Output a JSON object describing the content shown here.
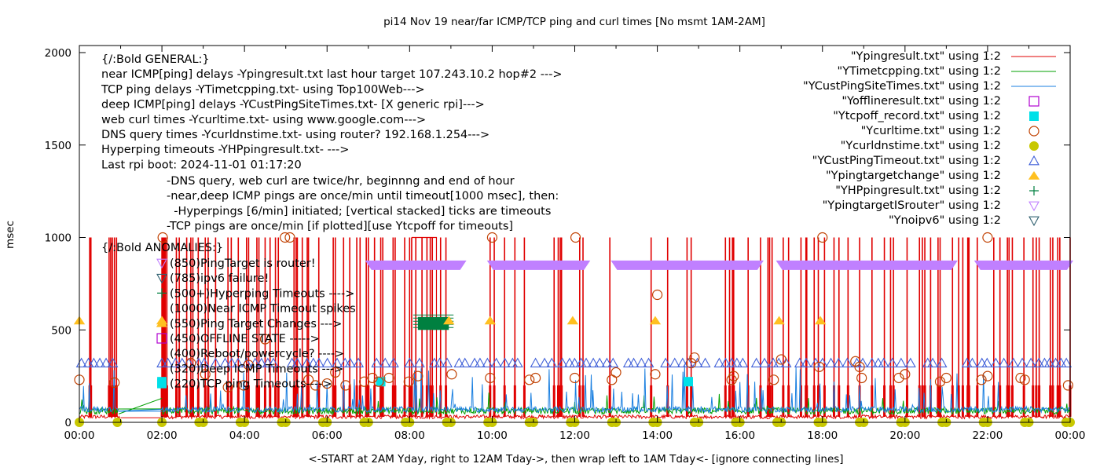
{
  "chart_data": {
    "type": "line",
    "title": "pi14 Nov 19  near/far ICMP/TCP ping and curl times [No msmt 1AM-2AM]",
    "xlabel": "<-START at 2AM Yday, right to 12AM Tday->, then wrap left to 1AM Tday<- [ignore connecting lines]",
    "ylabel": "msec",
    "xlim_hours": [
      0,
      24
    ],
    "ylim": [
      0,
      2000
    ],
    "x_ticks": [
      "00:00",
      "02:00",
      "04:00",
      "06:00",
      "08:00",
      "10:00",
      "12:00",
      "14:00",
      "16:00",
      "18:00",
      "20:00",
      "22:00",
      "00:00"
    ],
    "y_ticks": [
      0,
      500,
      1000,
      1500,
      2000
    ],
    "grid": false,
    "legend_position": "top-right",
    "legend": [
      {
        "label": "\"Ypingresult.txt\" using 1:2",
        "style": "line",
        "color": "#e00000"
      },
      {
        "label": "\"YTimetcpping.txt\" using 1:2",
        "style": "line",
        "color": "#00a000"
      },
      {
        "label": "\"YCustPingSiteTimes.txt\" using 1:2",
        "style": "line",
        "color": "#1a7fe0"
      },
      {
        "label": "\"Yofflineresult.txt\" using 1:2",
        "style": "open-square",
        "color": "#b000d0"
      },
      {
        "label": "\"Ytcpoff_record.txt\" using 1:2",
        "style": "filled-square",
        "color": "#00e0e8"
      },
      {
        "label": "\"Ycurltime.txt\" using 1:2",
        "style": "open-circle",
        "color": "#c04000"
      },
      {
        "label": "\"Ycurldnstime.txt\" using 1:2",
        "style": "filled-circle",
        "color": "#c8c800"
      },
      {
        "label": "\"YCustPingTimeout.txt\" using 1:2",
        "style": "open-triangle",
        "color": "#4060d8"
      },
      {
        "label": "\"Ypingtargetchange\" using 1:2",
        "style": "filled-triangle",
        "color": "#ffc020"
      },
      {
        "label": "\"YHPpingresult.txt\" using 1:2",
        "style": "plus",
        "color": "#008040"
      },
      {
        "label": "\"YpingtargetISrouter\" using 1:2",
        "style": "open-down-triangle",
        "color": "#c080ff"
      },
      {
        "label": "\"Ynoipv6\" using 1:2",
        "style": "open-down-triangle",
        "color": "#306070"
      }
    ],
    "annotations_general": [
      "{/:Bold GENERAL:}",
      "near ICMP[ping] delays -Ypingresult.txt last hour target 107.243.10.2 hop#2 --->",
      "TCP ping delays -YTimetcpping.txt- using Top100Web--->",
      "deep ICMP[ping] delays -YCustPingSiteTimes.txt- [X generic rpi]--->",
      "web curl times -Ycurltime.txt- using www.google.com--->",
      "DNS query times -Ycurldnstime.txt- using router? 192.168.1.254--->",
      "Hyperping timeouts -YHPpingresult.txt- --->",
      "Last rpi boot: 2024-11-01 01:17:20"
    ],
    "annotations_notes": [
      "-DNS query, web curl are twice/hr, beginnng and end of hour",
      "-near,deep ICMP pings are once/min until timeout[1000 msec], then:",
      "  -Hyperpings [6/min] initiated; [vertical stacked] ticks are timeouts",
      "-TCP pings are once/min [if plotted][use Ytcpoff for timeouts]"
    ],
    "annotations_anomalies_title": "{/:Bold ANOMALIES:}",
    "annotations_anomalies": [
      {
        "text": "(850)PingTarget is router!",
        "symbol": "open-down-triangle",
        "color": "#c080ff"
      },
      {
        "text": "(785)ipv6 failure!",
        "symbol": "open-down-triangle",
        "color": "#306070"
      },
      {
        "text": "(500+)Hyperping Timeouts ---->",
        "symbol": "plus",
        "color": "#008040"
      },
      {
        "text": "(1000)Near ICMP Timeout spikes",
        "symbol": "none",
        "color": ""
      },
      {
        "text": "(550)Ping Target Changes --->",
        "symbol": "filled-triangle",
        "color": "#ffc020"
      },
      {
        "text": "(450)OFFLINE STATE ----->",
        "symbol": "open-square",
        "color": "#b000d0"
      },
      {
        "text": "(400)Reboot/powercycle? ---->",
        "symbol": "none",
        "color": ""
      },
      {
        "text": "(320)Deep ICMP Timeouts --->",
        "symbol": "none",
        "color": ""
      },
      {
        "text": "(220)TCP ping Timeouts---->",
        "symbol": "filled-square",
        "color": "#00e0e8"
      }
    ],
    "series": [
      {
        "name": "Ypingresult.txt",
        "kind": "baseline_line",
        "baseline_msec": 25,
        "timeout_spikes_hours": [
          0.25,
          0.28,
          0.72,
          0.76,
          0.8,
          0.85,
          0.9,
          2.0,
          2.05,
          2.08,
          2.12,
          2.35,
          2.42,
          2.6,
          2.7,
          2.75,
          2.88,
          3.05,
          3.12,
          3.3,
          3.6,
          3.68,
          3.85,
          4.05,
          4.1,
          4.3,
          4.35,
          4.5,
          4.62,
          4.75,
          4.82,
          5.2,
          5.25,
          5.28,
          5.4,
          5.52,
          5.55,
          5.8,
          6.15,
          6.2,
          6.4,
          6.55,
          6.72,
          6.8,
          6.95,
          7.0,
          7.15,
          7.3,
          7.35,
          7.6,
          7.65,
          7.88,
          8.0,
          8.05,
          8.15,
          8.3,
          8.42,
          8.5,
          8.55,
          8.75,
          8.88,
          9.95,
          10.05,
          10.3,
          10.55,
          10.78,
          11.5,
          11.6,
          11.65,
          11.68,
          12.12,
          12.2,
          12.85,
          13.85,
          14.25,
          14.72,
          14.82,
          15.65,
          15.75,
          15.82,
          15.85,
          16.2,
          16.5,
          16.68,
          16.72,
          16.78,
          17.05,
          17.18,
          17.48,
          17.6,
          17.62,
          17.8,
          17.9,
          18.05,
          18.28,
          18.4,
          18.62,
          18.9,
          19.2,
          19.5,
          19.65,
          19.72,
          20.05,
          20.35,
          20.42,
          20.48,
          20.62,
          20.8,
          20.85,
          21.15,
          21.3,
          21.4,
          21.52,
          21.55,
          21.75,
          22.15,
          22.3,
          22.48,
          22.52,
          22.6,
          22.88,
          23.1,
          23.18,
          23.25,
          23.52,
          23.58,
          23.7,
          23.75,
          24.0
        ]
      },
      {
        "name": "YTimetcpping.txt",
        "kind": "noise_line",
        "baseline_msec": 45
      },
      {
        "name": "YCustPingSiteTimes.txt",
        "kind": "noise_line",
        "baseline_msec": 55
      },
      {
        "name": "Yofflineresult.txt",
        "kind": "points",
        "points": []
      },
      {
        "name": "Ytcpoff_record.txt",
        "kind": "points",
        "points": [
          [
            2.0,
            220
          ],
          [
            7.3,
            220
          ],
          [
            14.75,
            220
          ]
        ]
      },
      {
        "name": "Ycurltime.txt",
        "kind": "points",
        "points": [
          [
            0.0,
            230
          ],
          [
            0.85,
            215
          ],
          [
            2.02,
            1000
          ],
          [
            2.7,
            320
          ],
          [
            3.05,
            260
          ],
          [
            3.6,
            190
          ],
          [
            3.98,
            200
          ],
          [
            4.1,
            310
          ],
          [
            4.5,
            450
          ],
          [
            4.98,
            1000
          ],
          [
            5.1,
            1000
          ],
          [
            5.55,
            230
          ],
          [
            5.72,
            200
          ],
          [
            6.0,
            210
          ],
          [
            6.2,
            270
          ],
          [
            6.45,
            200
          ],
          [
            6.9,
            220
          ],
          [
            7.1,
            240
          ],
          [
            7.25,
            220
          ],
          [
            7.5,
            240
          ],
          [
            7.98,
            220
          ],
          [
            8.2,
            250
          ],
          [
            9.02,
            260
          ],
          [
            9.95,
            240
          ],
          [
            10.0,
            1000
          ],
          [
            10.9,
            230
          ],
          [
            11.05,
            240
          ],
          [
            12.0,
            240
          ],
          [
            12.02,
            1000
          ],
          [
            12.9,
            230
          ],
          [
            13.0,
            270
          ],
          [
            13.95,
            260
          ],
          [
            14.0,
            690
          ],
          [
            14.82,
            320
          ],
          [
            14.9,
            350
          ],
          [
            15.8,
            230
          ],
          [
            15.85,
            250
          ],
          [
            16.82,
            230
          ],
          [
            17.0,
            340
          ],
          [
            17.92,
            300
          ],
          [
            18.0,
            1000
          ],
          [
            18.8,
            330
          ],
          [
            18.9,
            300
          ],
          [
            18.95,
            240
          ],
          [
            19.85,
            240
          ],
          [
            20.0,
            260
          ],
          [
            20.85,
            220
          ],
          [
            21.0,
            240
          ],
          [
            21.85,
            230
          ],
          [
            22.0,
            1000
          ],
          [
            22.0,
            250
          ],
          [
            22.8,
            240
          ],
          [
            22.9,
            230
          ],
          [
            23.95,
            200
          ]
        ]
      },
      {
        "name": "Ycurldnstime.txt",
        "kind": "points",
        "points": [
          [
            0.0,
            0
          ],
          [
            0.92,
            0
          ],
          [
            2.0,
            0
          ],
          [
            2.9,
            0
          ],
          [
            3.0,
            0
          ],
          [
            3.9,
            0
          ],
          [
            4.0,
            0
          ],
          [
            4.9,
            0
          ],
          [
            5.0,
            0
          ],
          [
            5.9,
            0
          ],
          [
            6.0,
            0
          ],
          [
            6.9,
            0
          ],
          [
            7.0,
            0
          ],
          [
            7.9,
            0
          ],
          [
            8.0,
            0
          ],
          [
            8.9,
            0
          ],
          [
            9.0,
            0
          ],
          [
            9.9,
            0
          ],
          [
            10.0,
            0
          ],
          [
            10.9,
            0
          ],
          [
            11.0,
            0
          ],
          [
            11.9,
            0
          ],
          [
            12.0,
            0
          ],
          [
            12.9,
            0
          ],
          [
            13.0,
            0
          ],
          [
            13.9,
            0
          ],
          [
            14.0,
            0
          ],
          [
            14.9,
            0
          ],
          [
            15.0,
            0
          ],
          [
            15.9,
            0
          ],
          [
            16.0,
            0
          ],
          [
            16.9,
            0
          ],
          [
            17.0,
            0
          ],
          [
            17.9,
            0
          ],
          [
            18.0,
            0
          ],
          [
            18.9,
            0
          ],
          [
            19.0,
            0
          ],
          [
            19.9,
            0
          ],
          [
            20.0,
            0
          ],
          [
            20.9,
            0
          ],
          [
            21.0,
            0
          ],
          [
            21.9,
            0
          ],
          [
            22.0,
            0
          ],
          [
            22.9,
            0
          ],
          [
            23.0,
            0
          ],
          [
            23.9,
            0
          ],
          [
            24.0,
            0
          ]
        ]
      },
      {
        "name": "YCustPingTimeout.txt",
        "kind": "point_ranges",
        "y": 320,
        "ranges_hours": [
          [
            0.05,
            1.0
          ],
          [
            2.0,
            3.1
          ],
          [
            3.3,
            4.85
          ],
          [
            5.15,
            6.85
          ],
          [
            7.2,
            7.75
          ],
          [
            8.0,
            8.3
          ],
          [
            8.6,
            9.05
          ],
          [
            9.2,
            9.9
          ],
          [
            10.1,
            10.7
          ],
          [
            11.05,
            11.5
          ],
          [
            11.7,
            13.0
          ],
          [
            13.3,
            14.0
          ],
          [
            14.2,
            15.2
          ],
          [
            15.5,
            16.25
          ],
          [
            16.4,
            17.25
          ],
          [
            17.45,
            18.45
          ],
          [
            18.6,
            19.0
          ],
          [
            19.2,
            20.2
          ],
          [
            20.55,
            21.1
          ],
          [
            21.5,
            22.0
          ],
          [
            22.2,
            22.95
          ],
          [
            23.05,
            23.95
          ]
        ]
      },
      {
        "name": "Ypingtargetchange",
        "kind": "points",
        "points": [
          [
            0.0,
            550
          ],
          [
            2.0,
            550
          ],
          [
            8.95,
            550
          ],
          [
            9.95,
            550
          ],
          [
            11.95,
            550
          ],
          [
            13.95,
            550
          ],
          [
            16.95,
            550
          ],
          [
            17.95,
            550
          ]
        ]
      },
      {
        "name": "YHPpingresult.txt",
        "kind": "block",
        "hours": [
          8.2,
          8.95
        ],
        "msec": [
          500,
          570
        ]
      },
      {
        "name": "YpingtargetISrouter",
        "kind": "point_ranges",
        "y": 850,
        "ranges_hours": [
          [
            7.0,
            9.3
          ],
          [
            9.95,
            12.3
          ],
          [
            12.95,
            16.5
          ],
          [
            16.95,
            21.2
          ],
          [
            21.75,
            24.0
          ]
        ]
      },
      {
        "name": "Ynoipv6",
        "kind": "points",
        "points": []
      }
    ]
  }
}
